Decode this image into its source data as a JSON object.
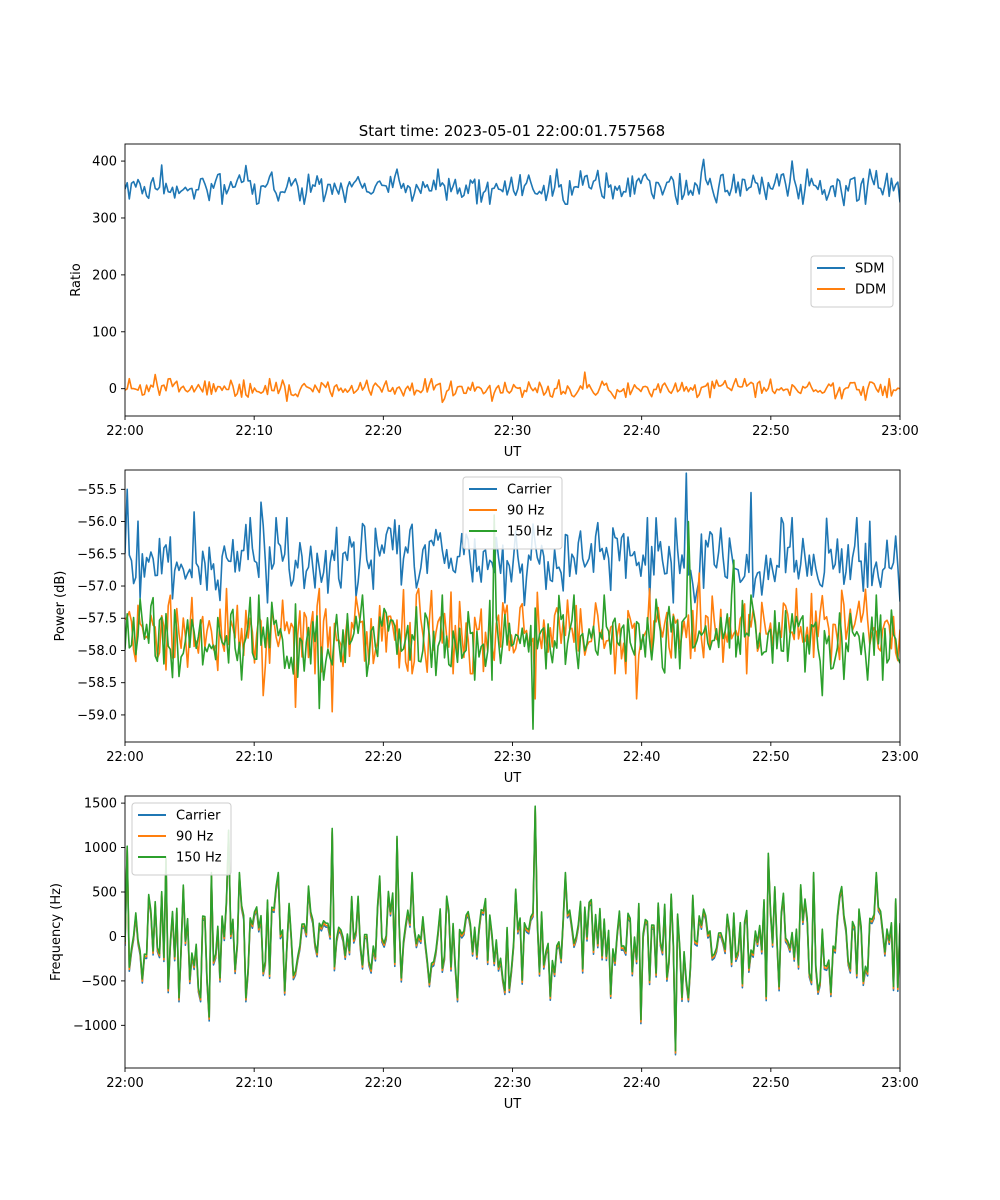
{
  "figure": {
    "title": "Start time: 2023-05-01 22:00:01.757568"
  },
  "chart_data": [
    {
      "type": "line",
      "xlabel": "UT",
      "ylabel": "Ratio",
      "x_range": [
        "22:00",
        "23:00"
      ],
      "xticks": [
        "22:00",
        "22:10",
        "22:20",
        "22:30",
        "22:40",
        "22:50",
        "23:00"
      ],
      "ylim": [
        -48,
        430
      ],
      "yticks": [
        0,
        100,
        200,
        300,
        400
      ],
      "grid": false,
      "legend": "center-right",
      "series": [
        {
          "name": "SDM",
          "color": "#1f77b4",
          "mean": 355,
          "noise": 14,
          "seed": 11,
          "spikes": [
            [
              44.8,
              403
            ],
            [
              2.8,
              393
            ],
            [
              10.4,
              326
            ],
            [
              55.7,
              322
            ],
            [
              9.4,
              392
            ],
            [
              51.7,
              400
            ]
          ]
        },
        {
          "name": "DDM",
          "color": "#ff7f0e",
          "mean": 0,
          "noise": 8,
          "seed": 23,
          "spikes": [
            [
              35.6,
              29
            ],
            [
              2.3,
              25
            ],
            [
              24.5,
              -24
            ],
            [
              12.6,
              -22
            ],
            [
              28.4,
              -22
            ],
            [
              57.4,
              -20
            ]
          ]
        }
      ]
    },
    {
      "type": "line",
      "xlabel": "UT",
      "ylabel": "Power (dB)",
      "x_range": [
        "22:00",
        "23:00"
      ],
      "xticks": [
        "22:00",
        "22:10",
        "22:20",
        "22:30",
        "22:40",
        "22:50",
        "23:00"
      ],
      "ylim": [
        -59.42,
        -55.2
      ],
      "yticks": [
        -59.0,
        -58.5,
        -58.0,
        -57.5,
        -57.0,
        -56.5,
        -56.0,
        -55.5
      ],
      "ytick_labels": [
        "−59.0",
        "−58.5",
        "−58.0",
        "−57.5",
        "−57.0",
        "−56.5",
        "−56.0",
        "−55.5"
      ],
      "grid": false,
      "legend": "upper-center",
      "series": [
        {
          "name": "Carrier",
          "color": "#1f77b4",
          "mean": -56.6,
          "noise": 0.3,
          "seed": 37,
          "spikes": [
            [
              0.2,
              -55.5
            ],
            [
              43.5,
              -55.25
            ],
            [
              48.5,
              -55.55
            ],
            [
              10.5,
              -55.7
            ],
            [
              54.4,
              -55.95
            ],
            [
              5.3,
              -55.85
            ],
            [
              31.0,
              -57.3
            ]
          ]
        },
        {
          "name": "90 Hz",
          "color": "#ff7f0e",
          "mean": -57.7,
          "noise": 0.3,
          "seed": 41,
          "spikes": [
            [
              16.0,
              -58.95
            ],
            [
              13.2,
              -58.88
            ],
            [
              10.7,
              -58.7
            ],
            [
              44.5,
              -56.8
            ],
            [
              39.6,
              -58.75
            ],
            [
              31.7,
              -58.75
            ]
          ]
        },
        {
          "name": "150 Hz",
          "color": "#2ca02c",
          "mean": -57.8,
          "noise": 0.3,
          "seed": 53,
          "spikes": [
            [
              31.6,
              -59.22
            ],
            [
              28.6,
              -55.9
            ],
            [
              43.6,
              -56.0
            ],
            [
              15.1,
              -58.9
            ],
            [
              47.2,
              -56.6
            ],
            [
              54.0,
              -58.7
            ]
          ]
        }
      ]
    },
    {
      "type": "line",
      "xlabel": "UT",
      "ylabel": "Frequency (Hz)",
      "x_range": [
        "22:00",
        "23:00"
      ],
      "xticks": [
        "22:00",
        "22:10",
        "22:20",
        "22:30",
        "22:40",
        "22:50",
        "23:00"
      ],
      "ylim": [
        -1480,
        1580
      ],
      "yticks": [
        -1000,
        -500,
        0,
        500,
        1000,
        1500
      ],
      "ytick_labels": [
        "−1000",
        "−500",
        "0",
        "500",
        "1000",
        "1500"
      ],
      "grid": false,
      "legend": "upper-left",
      "series": [
        {
          "name": "Carrier",
          "color": "#1f77b4",
          "offset": -30,
          "scale": 1.0
        },
        {
          "name": "90 Hz",
          "color": "#ff7f0e",
          "offset": -10,
          "scale": 1.0
        },
        {
          "name": "150 Hz",
          "color": "#2ca02c",
          "offset": 15,
          "scale": 1.0
        }
      ],
      "base": {
        "mean": 0,
        "noise": 320,
        "seed": 67,
        "spikes": [
          [
            31.7,
            1450
          ],
          [
            8.0,
            1180
          ],
          [
            42.6,
            -1300
          ],
          [
            40.0,
            -950
          ],
          [
            16.1,
            1200
          ],
          [
            21.0,
            1110
          ],
          [
            6.6,
            -920
          ],
          [
            0.1,
            1000
          ],
          [
            49.8,
            920
          ],
          [
            3.1,
            880
          ]
        ]
      }
    }
  ]
}
